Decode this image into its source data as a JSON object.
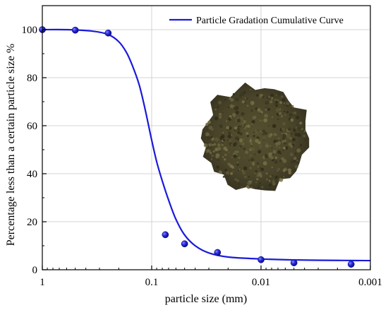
{
  "chart_data": {
    "type": "scatter",
    "title": "",
    "xlabel": "particle size (mm)",
    "ylabel": "Percentage less than a certain particle size %",
    "x_scale": "log",
    "x_reversed": true,
    "xlim": [
      1,
      0.001
    ],
    "ylim": [
      0,
      110
    ],
    "x_ticks": [
      1,
      0.1,
      0.01,
      0.001
    ],
    "x_tick_labels": [
      "1",
      "0.1",
      "0.01",
      "0.001"
    ],
    "y_ticks": [
      0,
      20,
      40,
      60,
      80,
      100
    ],
    "y_tick_labels": [
      "0",
      "20",
      "40",
      "60",
      "80",
      "100"
    ],
    "grid": true,
    "legend_position": "top-right",
    "series": [
      {
        "name": "Particle Gradation Cumulative Curve",
        "kind": "fitted-curve",
        "color": "#1a1adb",
        "x": [
          1,
          0.6,
          0.35,
          0.25,
          0.2,
          0.17,
          0.15,
          0.13,
          0.115,
          0.1,
          0.09,
          0.08,
          0.07,
          0.06,
          0.05,
          0.04,
          0.03,
          0.02,
          0.01,
          0.005,
          0.002,
          0.001
        ],
        "y": [
          100,
          100,
          99.4,
          98,
          95,
          90.5,
          85,
          77,
          67,
          54,
          45,
          37,
          29,
          21,
          14.5,
          10,
          7,
          5.3,
          4.5,
          4.1,
          3.9,
          3.8
        ]
      },
      {
        "name": "measured points",
        "kind": "points",
        "color": "#1a1adb",
        "x": [
          1,
          0.5,
          0.25,
          0.075,
          0.05,
          0.025,
          0.01,
          0.005,
          0.0015
        ],
        "y": [
          100,
          99.8,
          98.6,
          14.6,
          10.8,
          7.2,
          4.2,
          2.9,
          2.3
        ]
      }
    ]
  },
  "photo": {
    "subject": "soil-sample-photo",
    "color": "#4f4a30"
  }
}
